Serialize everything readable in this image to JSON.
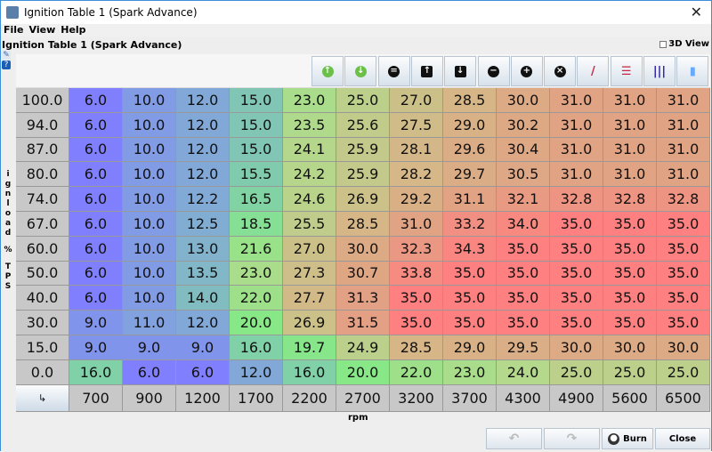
{
  "window": {
    "title": "Ignition Table 1 (Spark Advance)",
    "close_glyph": "✕"
  },
  "menu": [
    "File",
    "View",
    "Help"
  ],
  "panel": {
    "title": "Ignition Table 1 (Spark Advance)",
    "view3d_label": "3D View",
    "view3d_checked": false
  },
  "toolbar": [
    {
      "icon": "arrow-up-green-icon",
      "glyph": "↑",
      "color": "#6cc04a"
    },
    {
      "icon": "arrow-down-green-icon",
      "glyph": "↓",
      "color": "#6cc04a"
    },
    {
      "icon": "equals-icon",
      "glyph": "=",
      "color": "#111111"
    },
    {
      "icon": "increment-icon",
      "glyph": "↑",
      "color": "#111111"
    },
    {
      "icon": "decrement-icon",
      "glyph": "↓",
      "color": "#111111"
    },
    {
      "icon": "minus-icon",
      "glyph": "−",
      "color": "#111111"
    },
    {
      "icon": "plus-icon",
      "glyph": "+",
      "color": "#111111"
    },
    {
      "icon": "multiply-icon",
      "glyph": "×",
      "color": "#111111"
    },
    {
      "icon": "interpolate-icon",
      "glyph": "/",
      "color": "#cc2244"
    },
    {
      "icon": "horizontal-interpolate-icon",
      "glyph": "☰",
      "color": "#cc2244"
    },
    {
      "icon": "vertical-interpolate-icon",
      "glyph": "|||",
      "color": "#3322aa"
    },
    {
      "icon": "smooth-icon",
      "glyph": "▮",
      "color": "#66aaff"
    }
  ],
  "y_axis": {
    "label": "ignload % TPS",
    "values": [
      "100.0",
      "94.0",
      "87.0",
      "80.0",
      "74.0",
      "67.0",
      "60.0",
      "50.0",
      "40.0",
      "30.0",
      "15.0",
      "0.0"
    ]
  },
  "x_axis": {
    "label": "rpm",
    "values": [
      "700",
      "900",
      "1200",
      "1700",
      "2200",
      "2700",
      "3200",
      "3700",
      "4300",
      "4900",
      "5600",
      "6500"
    ]
  },
  "corner_glyph": "↳",
  "table": [
    [
      "6.0",
      "10.0",
      "12.0",
      "15.0",
      "23.0",
      "25.0",
      "27.0",
      "28.5",
      "30.0",
      "31.0",
      "31.0",
      "31.0"
    ],
    [
      "6.0",
      "10.0",
      "12.0",
      "15.0",
      "23.5",
      "25.6",
      "27.5",
      "29.0",
      "30.2",
      "31.0",
      "31.0",
      "31.0"
    ],
    [
      "6.0",
      "10.0",
      "12.0",
      "15.0",
      "24.1",
      "25.9",
      "28.1",
      "29.6",
      "30.4",
      "31.0",
      "31.0",
      "31.0"
    ],
    [
      "6.0",
      "10.0",
      "12.0",
      "15.5",
      "24.2",
      "25.9",
      "28.2",
      "29.7",
      "30.5",
      "31.0",
      "31.0",
      "31.0"
    ],
    [
      "6.0",
      "10.0",
      "12.2",
      "16.5",
      "24.6",
      "26.9",
      "29.2",
      "31.1",
      "32.1",
      "32.8",
      "32.8",
      "32.8"
    ],
    [
      "6.0",
      "10.0",
      "12.5",
      "18.5",
      "25.5",
      "28.5",
      "31.0",
      "33.2",
      "34.0",
      "35.0",
      "35.0",
      "35.0"
    ],
    [
      "6.0",
      "10.0",
      "13.0",
      "21.6",
      "27.0",
      "30.0",
      "32.3",
      "34.3",
      "35.0",
      "35.0",
      "35.0",
      "35.0"
    ],
    [
      "6.0",
      "10.0",
      "13.5",
      "23.0",
      "27.3",
      "30.7",
      "33.8",
      "35.0",
      "35.0",
      "35.0",
      "35.0",
      "35.0"
    ],
    [
      "6.0",
      "10.0",
      "14.0",
      "22.0",
      "27.7",
      "31.3",
      "35.0",
      "35.0",
      "35.0",
      "35.0",
      "35.0",
      "35.0"
    ],
    [
      "9.0",
      "11.0",
      "12.0",
      "20.0",
      "26.9",
      "31.5",
      "35.0",
      "35.0",
      "35.0",
      "35.0",
      "35.0",
      "35.0"
    ],
    [
      "9.0",
      "9.0",
      "9.0",
      "16.0",
      "19.7",
      "24.9",
      "28.5",
      "29.0",
      "29.5",
      "30.0",
      "30.0",
      "30.0"
    ],
    [
      "16.0",
      "6.0",
      "6.0",
      "12.0",
      "16.0",
      "20.0",
      "22.0",
      "23.0",
      "24.0",
      "25.0",
      "25.0",
      "25.0"
    ]
  ],
  "color_scale": [
    [
      6,
      "#8080ff"
    ],
    [
      12,
      "#82a8d8"
    ],
    [
      16,
      "#80d0a8"
    ],
    [
      20,
      "#88e888"
    ],
    [
      24,
      "#b4d88c"
    ],
    [
      28,
      "#d4b888"
    ],
    [
      31,
      "#e0a484"
    ],
    [
      35,
      "#ff8080"
    ]
  ],
  "buttons": {
    "undo_label": "↶",
    "redo_label": "↷",
    "burn_label": "Burn",
    "close_label": "Close"
  }
}
